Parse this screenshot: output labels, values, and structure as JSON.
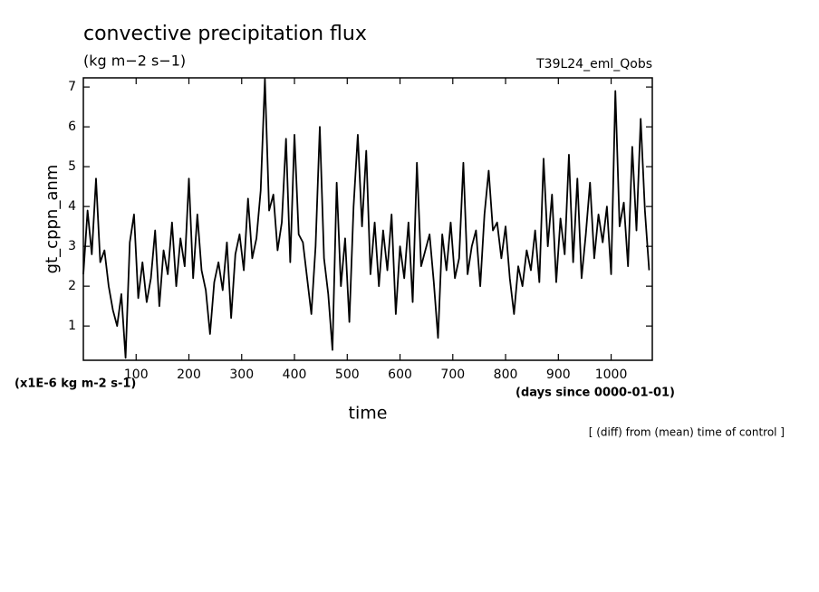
{
  "chart_data": {
    "type": "line",
    "title": "convective precipitation flux",
    "subtitle": "(kg m−2 s−1)",
    "annotation_right": "T39L24_eml_Qobs",
    "y_label": "gt_cppn_anm",
    "y_unit_label": "(x1E-6 kg m-2 s-1)",
    "x_label": "time",
    "x_unit_label": "(days since 0000-01-01)",
    "footnote": "[ (diff) from (mean) time of control ]",
    "color": "#000000",
    "xlim": [
      0,
      1078
    ],
    "ylim": [
      0.14,
      7.23
    ],
    "xticks": [
      100,
      200,
      300,
      400,
      500,
      600,
      700,
      800,
      900,
      1000
    ],
    "yticks": [
      1,
      2,
      3,
      4,
      5,
      6,
      7
    ],
    "x": [
      0,
      8,
      16,
      24,
      32,
      40,
      48,
      56,
      64,
      72,
      80,
      88,
      96,
      104,
      112,
      120,
      128,
      136,
      144,
      152,
      160,
      168,
      176,
      184,
      192,
      200,
      208,
      216,
      224,
      232,
      240,
      248,
      256,
      264,
      272,
      280,
      288,
      296,
      304,
      312,
      320,
      328,
      336,
      344,
      352,
      360,
      368,
      376,
      384,
      392,
      400,
      408,
      416,
      424,
      432,
      440,
      448,
      456,
      464,
      472,
      480,
      488,
      496,
      504,
      512,
      520,
      528,
      536,
      544,
      552,
      560,
      568,
      576,
      584,
      592,
      600,
      608,
      616,
      624,
      632,
      640,
      648,
      656,
      664,
      672,
      680,
      688,
      696,
      704,
      712,
      720,
      728,
      736,
      744,
      752,
      760,
      768,
      776,
      784,
      792,
      800,
      808,
      816,
      824,
      832,
      840,
      848,
      856,
      864,
      872,
      880,
      888,
      896,
      904,
      912,
      920,
      928,
      936,
      944,
      952,
      960,
      968,
      976,
      984,
      992,
      1000,
      1008,
      1016,
      1024,
      1032,
      1040,
      1048,
      1056,
      1064,
      1072
    ],
    "values": [
      2.3,
      3.9,
      2.8,
      4.7,
      2.6,
      2.9,
      2.0,
      1.4,
      1.0,
      1.8,
      0.2,
      3.1,
      3.8,
      1.7,
      2.6,
      1.6,
      2.2,
      3.4,
      1.5,
      2.9,
      2.3,
      3.6,
      2.0,
      3.2,
      2.5,
      4.7,
      2.2,
      3.8,
      2.4,
      1.9,
      0.8,
      2.1,
      2.6,
      1.9,
      3.1,
      1.2,
      2.8,
      3.3,
      2.4,
      4.2,
      2.7,
      3.2,
      4.4,
      7.2,
      3.9,
      4.3,
      2.9,
      3.6,
      5.7,
      2.6,
      5.8,
      3.3,
      3.1,
      2.2,
      1.3,
      3.0,
      6.0,
      2.7,
      1.8,
      0.4,
      4.6,
      2.0,
      3.2,
      1.1,
      4.0,
      5.8,
      3.5,
      5.4,
      2.3,
      3.6,
      2.0,
      3.4,
      2.4,
      3.8,
      1.3,
      3.0,
      2.2,
      3.6,
      1.6,
      5.1,
      2.5,
      2.9,
      3.3,
      2.1,
      0.7,
      3.3,
      2.4,
      3.6,
      2.2,
      2.7,
      5.1,
      2.3,
      3.0,
      3.4,
      2.0,
      3.8,
      4.9,
      3.4,
      3.6,
      2.7,
      3.5,
      2.2,
      1.3,
      2.5,
      2.0,
      2.9,
      2.4,
      3.4,
      2.1,
      5.2,
      3.0,
      4.3,
      2.1,
      3.7,
      2.8,
      5.3,
      2.6,
      4.7,
      2.2,
      3.3,
      4.6,
      2.7,
      3.8,
      3.1,
      4.0,
      2.3,
      6.9,
      3.5,
      4.1,
      2.5,
      5.5,
      3.4,
      6.2,
      3.9,
      2.4
    ]
  }
}
